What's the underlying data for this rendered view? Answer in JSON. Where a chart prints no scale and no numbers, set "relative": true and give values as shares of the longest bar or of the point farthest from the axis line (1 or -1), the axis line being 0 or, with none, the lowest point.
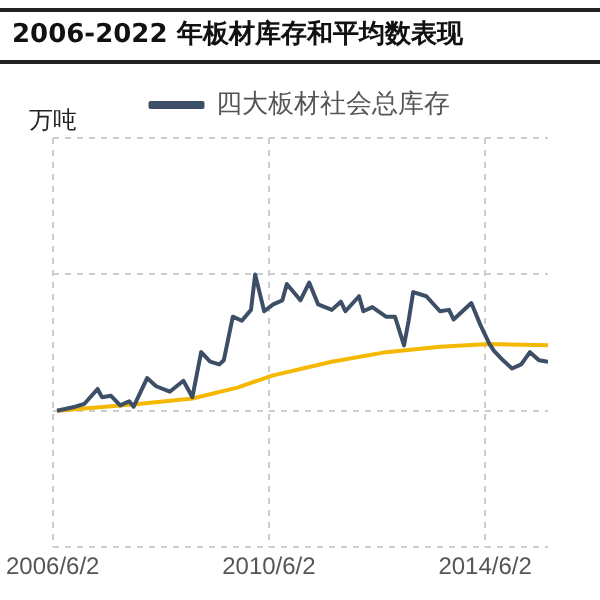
{
  "chart_data": {
    "type": "line",
    "title": "2006-2022 年板材库存和平均数表现",
    "annotations": [
      "万吨"
    ],
    "relative": true,
    "grid": true,
    "legend": "top",
    "marker": "none",
    "line_style": "solid",
    "xlim": [
      "2006-06-02",
      "2015-08"
    ],
    "xticks": [
      {
        "value": "2006-06-02",
        "label": "2006/6/2"
      },
      {
        "value": "2010-06-02",
        "label": "2010/6/2"
      },
      {
        "value": "2014-06-02",
        "label": "2014/6/2"
      }
    ],
    "series": [
      {
        "name": "四大板材社会总库存",
        "color": "#3d4f66",
        "x": [
          "2006-07",
          "2006-11",
          "2007-01",
          "2007-04",
          "2007-05",
          "2007-07",
          "2007-09",
          "2007-11",
          "2007-12",
          "2008-03",
          "2008-05",
          "2008-08",
          "2008-11",
          "2009-01",
          "2009-03",
          "2009-05",
          "2009-07",
          "2009-08",
          "2009-10",
          "2009-12",
          "2010-02",
          "2010-03",
          "2010-05",
          "2010-07",
          "2010-09",
          "2010-10",
          "2011-01",
          "2011-03",
          "2011-05",
          "2011-08",
          "2011-10",
          "2011-11",
          "2012-02",
          "2012-03",
          "2012-05",
          "2012-08",
          "2012-10",
          "2012-12",
          "2013-01",
          "2013-02",
          "2013-05",
          "2013-08",
          "2013-10",
          "2013-11",
          "2014-03",
          "2014-05",
          "2014-07",
          "2014-08",
          "2014-10",
          "2014-12",
          "2015-02",
          "2015-04",
          "2015-06",
          "2015-08"
        ],
        "values": [
          0,
          0.03,
          0.05,
          0.16,
          0.1,
          0.11,
          0.04,
          0.07,
          0.03,
          0.24,
          0.18,
          0.14,
          0.22,
          0.1,
          0.43,
          0.36,
          0.34,
          0.37,
          0.69,
          0.66,
          0.74,
          1,
          0.73,
          0.78,
          0.81,
          0.93,
          0.81,
          0.94,
          0.78,
          0.74,
          0.8,
          0.73,
          0.84,
          0.73,
          0.76,
          0.69,
          0.69,
          0.48,
          0.66,
          0.87,
          0.84,
          0.73,
          0.74,
          0.67,
          0.79,
          0.63,
          0.49,
          0.44,
          0.37,
          0.31,
          0.34,
          0.43,
          0.37,
          0.36
        ]
      },
      {
        "color": "#f5b800",
        "x": [
          "2006-07",
          "2008-01",
          "2009-01",
          "2009-11",
          "2010-07",
          "2011-08",
          "2012-08",
          "2013-08",
          "2014-07",
          "2015-08"
        ],
        "values": [
          0,
          0.05,
          0.09,
          0.17,
          0.26,
          0.36,
          0.43,
          0.47,
          0.49,
          0.48
        ]
      }
    ]
  }
}
